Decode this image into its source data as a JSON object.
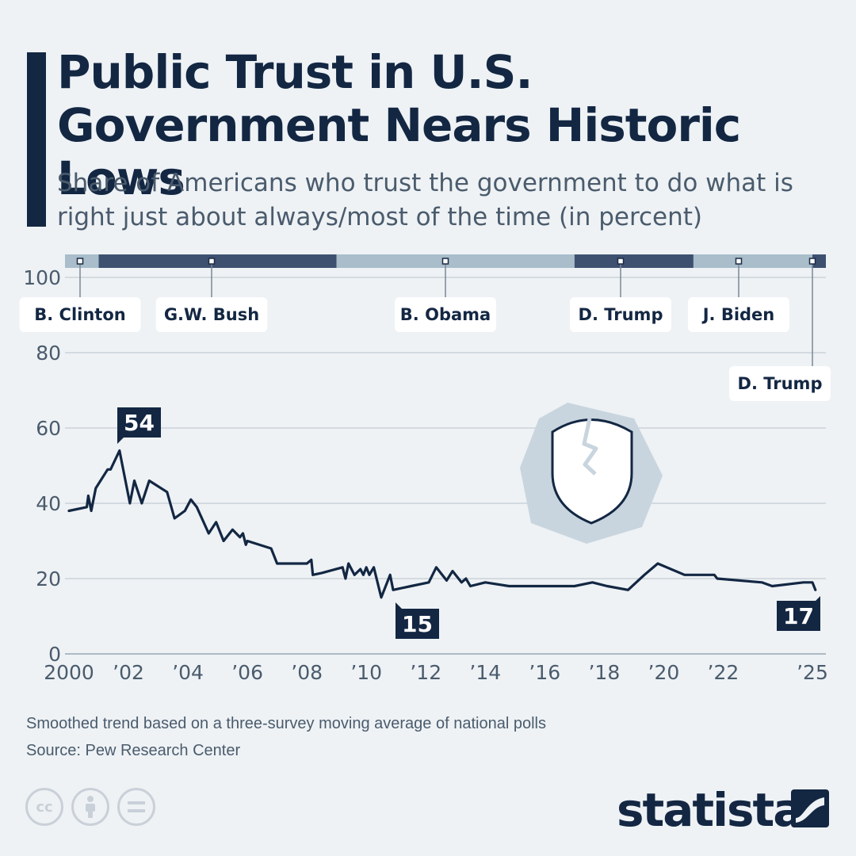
{
  "title": "Public Trust in U.S. Government Nears Historic Lows",
  "subtitle": "Share of Americans who trust the government to do what is right just about always/most of the time (in percent)",
  "footnote": "Smoothed trend based on a three-survey moving average of national polls",
  "source": "Source: Pew Research Center",
  "brand": "statista",
  "icons": [
    "cc-icon",
    "attribution-icon",
    "no-derivatives-icon",
    "broken-shield-icon",
    "statista-logo-mark"
  ],
  "colors": {
    "navy": "#132743",
    "bar_dark": "#3d5070",
    "bar_light": "#a9bdcb",
    "grid": "#c4ccd4",
    "text": "#4a5b6c",
    "shield_bg": "#c9d5de"
  },
  "chart_data": {
    "type": "line",
    "title": "Public Trust in U.S. Government Nears Historic Lows",
    "subtitle": "Share of Americans who trust the government to do what is right just about always/most of the time (in percent)",
    "xlabel": "",
    "ylabel": "",
    "ylim": [
      0,
      100
    ],
    "xlim": [
      2000,
      2025.3
    ],
    "y_ticks": [
      0,
      20,
      40,
      60,
      80,
      100
    ],
    "x_ticks": [
      {
        "x": 2000,
        "label": "2000"
      },
      {
        "x": 2002,
        "label": "’02"
      },
      {
        "x": 2004,
        "label": "’04"
      },
      {
        "x": 2006,
        "label": "’06"
      },
      {
        "x": 2008,
        "label": "’08"
      },
      {
        "x": 2010,
        "label": "’10"
      },
      {
        "x": 2012,
        "label": "’12"
      },
      {
        "x": 2014,
        "label": "’14"
      },
      {
        "x": 2016,
        "label": "’16"
      },
      {
        "x": 2018,
        "label": "’18"
      },
      {
        "x": 2020,
        "label": "’20"
      },
      {
        "x": 2022,
        "label": "’22"
      },
      {
        "x": 2025,
        "label": "’25"
      }
    ],
    "grid": true,
    "series": [
      {
        "values": [
          [
            2000.0,
            38
          ],
          [
            2000.6,
            39
          ],
          [
            2000.65,
            42
          ],
          [
            2000.75,
            38
          ],
          [
            2000.9,
            44
          ],
          [
            2001.3,
            49
          ],
          [
            2001.4,
            49
          ],
          [
            2001.7,
            54
          ],
          [
            2001.8,
            50
          ],
          [
            2002.05,
            40
          ],
          [
            2002.2,
            46
          ],
          [
            2002.45,
            40
          ],
          [
            2002.7,
            46
          ],
          [
            2003.3,
            43
          ],
          [
            2003.55,
            36
          ],
          [
            2003.9,
            38
          ],
          [
            2004.1,
            41
          ],
          [
            2004.3,
            39
          ],
          [
            2004.7,
            32
          ],
          [
            2004.95,
            35
          ],
          [
            2005.2,
            30
          ],
          [
            2005.5,
            33
          ],
          [
            2005.75,
            31
          ],
          [
            2005.85,
            32
          ],
          [
            2005.95,
            29
          ],
          [
            2006.0,
            30
          ],
          [
            2006.8,
            28
          ],
          [
            2007.0,
            24
          ],
          [
            2007.4,
            24
          ],
          [
            2008.0,
            24
          ],
          [
            2008.15,
            25
          ],
          [
            2008.2,
            21
          ],
          [
            2008.5,
            21.5
          ],
          [
            2009.2,
            23
          ],
          [
            2009.3,
            20
          ],
          [
            2009.4,
            24
          ],
          [
            2009.6,
            21
          ],
          [
            2009.8,
            22.5
          ],
          [
            2009.9,
            21
          ],
          [
            2010.0,
            23
          ],
          [
            2010.1,
            21
          ],
          [
            2010.25,
            23
          ],
          [
            2010.5,
            15
          ],
          [
            2010.8,
            21
          ],
          [
            2010.9,
            17
          ],
          [
            2011.5,
            18
          ],
          [
            2012.1,
            19
          ],
          [
            2012.35,
            23
          ],
          [
            2012.7,
            19.5
          ],
          [
            2012.9,
            22
          ],
          [
            2013.2,
            19
          ],
          [
            2013.35,
            20
          ],
          [
            2013.5,
            18
          ],
          [
            2014.0,
            19
          ],
          [
            2014.8,
            18
          ],
          [
            2016.0,
            18
          ],
          [
            2017.0,
            18
          ],
          [
            2017.6,
            19
          ],
          [
            2018.1,
            18
          ],
          [
            2018.8,
            17
          ],
          [
            2019.35,
            21
          ],
          [
            2019.8,
            24
          ],
          [
            2020.7,
            21
          ],
          [
            2021.7,
            21
          ],
          [
            2021.8,
            20
          ],
          [
            2023.3,
            19
          ],
          [
            2023.65,
            18
          ],
          [
            2024.7,
            19
          ],
          [
            2025.0,
            19
          ],
          [
            2025.1,
            17
          ]
        ]
      }
    ],
    "annotations": [
      {
        "x": 2001.7,
        "y": 54,
        "label": "54"
      },
      {
        "x": 2010.5,
        "y": 15,
        "label": "15"
      },
      {
        "x": 2025.1,
        "y": 17,
        "label": "17"
      }
    ],
    "presidencies": [
      {
        "name": "B. Clinton",
        "start": 1999.5,
        "end": 2001.0,
        "shade": "light"
      },
      {
        "name": "G.W. Bush",
        "start": 2001.0,
        "end": 2009.0,
        "shade": "dark"
      },
      {
        "name": "B. Obama",
        "start": 2009.0,
        "end": 2017.0,
        "shade": "light"
      },
      {
        "name": "D. Trump",
        "start": 2017.0,
        "end": 2021.0,
        "shade": "dark"
      },
      {
        "name": "J. Biden",
        "start": 2021.0,
        "end": 2025.0,
        "shade": "light"
      },
      {
        "name": "D. Trump",
        "start": 2025.0,
        "end": 2025.6,
        "shade": "dark"
      }
    ]
  }
}
